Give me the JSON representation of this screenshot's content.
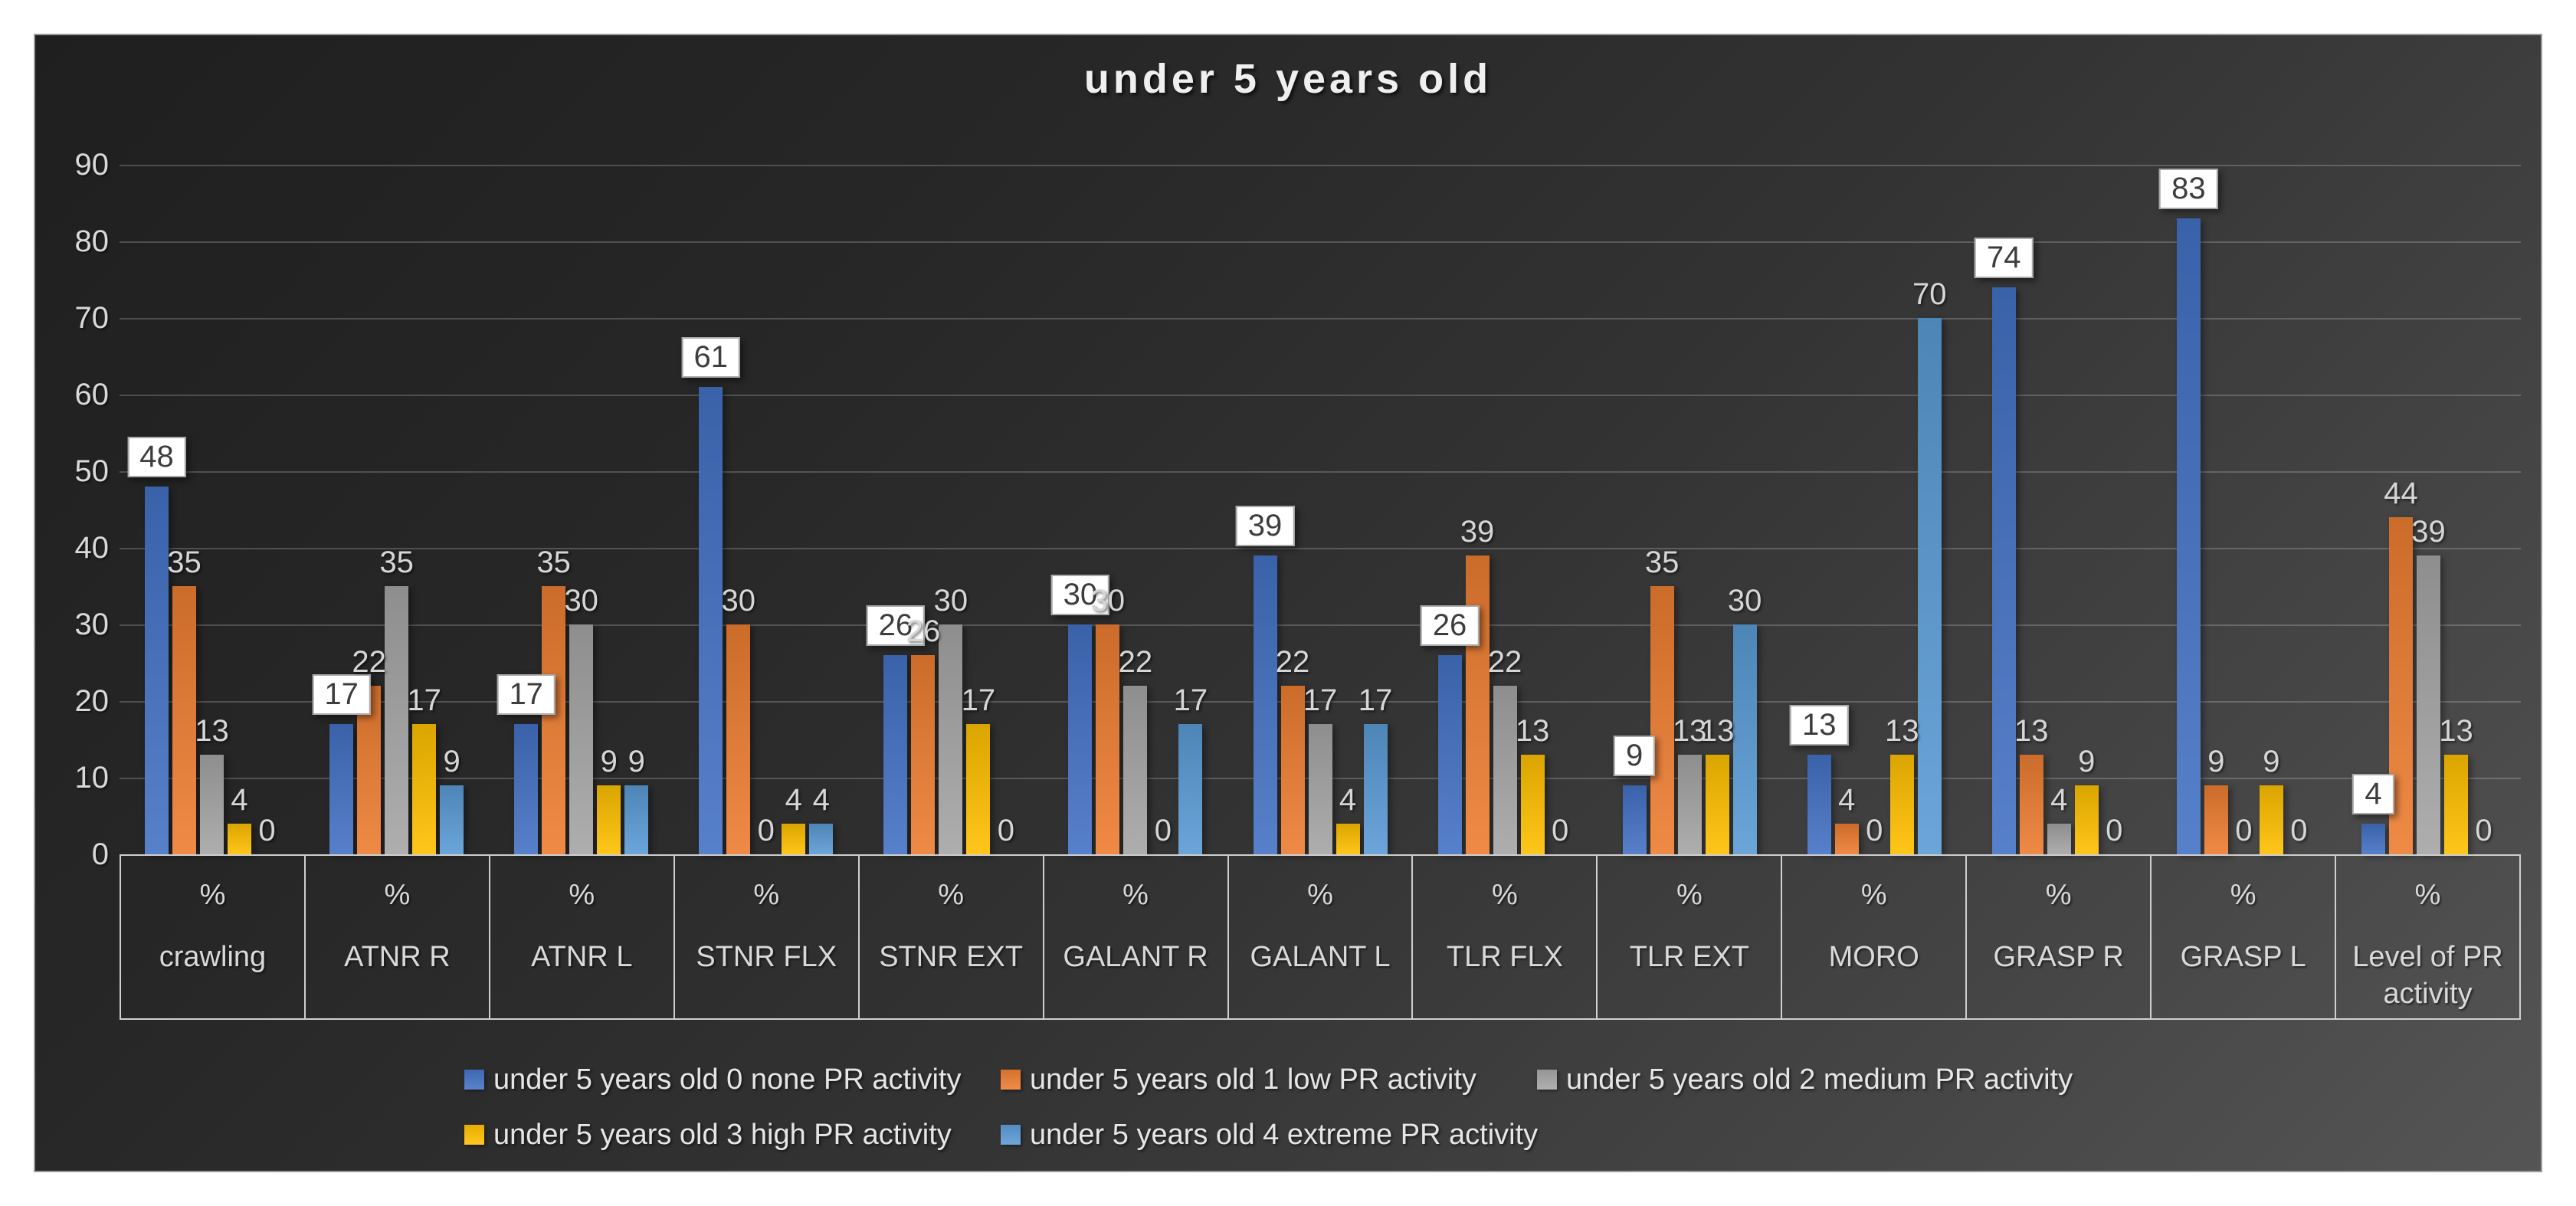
{
  "chart_data": {
    "type": "bar",
    "title": "under 5 years old",
    "categories": [
      "crawling",
      "ATNR R",
      "ATNR L",
      "STNR FLX",
      "STNR EXT",
      "GALANT R",
      "GALANT L",
      "TLR FLX",
      "TLR EXT",
      "MORO",
      "GRASP R",
      "GRASP L",
      "Level of PR activity"
    ],
    "category_sub_label": "%",
    "series": [
      {
        "name": "under 5 years old 0 none PR activity",
        "color": "#4472C4",
        "label_style": "boxed-white",
        "values": [
          48,
          17,
          17,
          61,
          26,
          30,
          39,
          26,
          9,
          13,
          74,
          83,
          4
        ]
      },
      {
        "name": "under 5 years old 1 low PR activity",
        "color": "#ED7D31",
        "label_style": "plain",
        "values": [
          35,
          22,
          35,
          30,
          26,
          30,
          22,
          39,
          35,
          4,
          13,
          9,
          44
        ]
      },
      {
        "name": "under 5 years old 2 medium PR activity",
        "color": "#A5A5A5",
        "label_style": "plain",
        "values": [
          13,
          35,
          30,
          0,
          30,
          22,
          17,
          22,
          13,
          0,
          4,
          0,
          39
        ]
      },
      {
        "name": "under 5 years old 3 high PR activity",
        "color": "#FFC000",
        "label_style": "plain",
        "values": [
          4,
          17,
          9,
          4,
          17,
          0,
          4,
          13,
          13,
          13,
          9,
          9,
          13
        ]
      },
      {
        "name": "under 5 years old 4 extreme PR activity",
        "color": "#5B9BD5",
        "label_style": "plain",
        "values": [
          0,
          9,
          9,
          4,
          0,
          17,
          17,
          0,
          30,
          70,
          0,
          0,
          0
        ]
      }
    ],
    "ylim": [
      0,
      90
    ],
    "y_step": 10,
    "y_ticks": [
      "0",
      "10",
      "20",
      "30",
      "40",
      "50",
      "60",
      "70",
      "80",
      "90"
    ],
    "grid": true,
    "legend_position": "bottom",
    "legend_rows": [
      [
        0,
        1,
        2
      ],
      [
        3,
        4
      ]
    ]
  },
  "palette": {
    "plain_label_color": "#d6d6d6",
    "boxed_label_bg": "#ffffff",
    "boxed_label_text": "#3d3d3d",
    "axis_text": "#d9d9d9",
    "table_line": "#cfcfcf",
    "frame_border": "#9a9a9a",
    "background_dark": "#262626",
    "background_light": "#555555"
  }
}
